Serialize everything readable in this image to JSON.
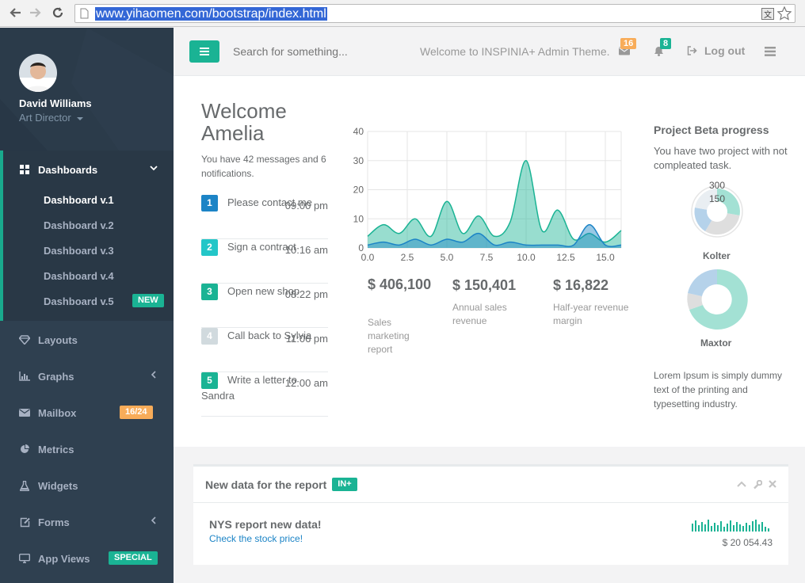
{
  "browser": {
    "url": "www.yihaomen.com/bootstrap/index.html"
  },
  "profile": {
    "name": "David Williams",
    "role": "Art Director"
  },
  "sidebar": {
    "items": [
      {
        "label": "Dashboards",
        "icon": "th-large-icon"
      },
      {
        "label": "Layouts",
        "icon": "diamond-icon"
      },
      {
        "label": "Graphs",
        "icon": "bar-chart-icon"
      },
      {
        "label": "Mailbox",
        "icon": "envelope-icon",
        "badge": "16/24"
      },
      {
        "label": "Metrics",
        "icon": "pie-chart-icon"
      },
      {
        "label": "Widgets",
        "icon": "flask-icon"
      },
      {
        "label": "Forms",
        "icon": "edit-icon"
      },
      {
        "label": "App Views",
        "icon": "desktop-icon",
        "badge": "SPECIAL"
      }
    ],
    "subitems": [
      "Dashboard v.1",
      "Dashboard v.2",
      "Dashboard v.3",
      "Dashboard v.4",
      "Dashboard v.5"
    ],
    "new_badge": "NEW"
  },
  "topbar": {
    "search_placeholder": "Search for something...",
    "welcome": "Welcome to INSPINIA+ Admin Theme.",
    "mail_count": "16",
    "alert_count": "8",
    "logout": "Log out"
  },
  "welcome": {
    "title": "Welcome Amelia",
    "subtitle": "You have 42 messages and 6 notifications."
  },
  "tasks": [
    {
      "num": "1",
      "text": "Please contact me",
      "time": "09:00 pm",
      "color": "#1c84c6"
    },
    {
      "num": "2",
      "text": "Sign a contract",
      "time": "10:16 am",
      "color": "#23c6c8"
    },
    {
      "num": "3",
      "text": "Open new shop",
      "time": "08:22 pm",
      "color": "#1ab394"
    },
    {
      "num": "4",
      "text": "Call back to Sylvia",
      "time": "11:06 pm",
      "color": "#d1dade"
    },
    {
      "num": "5",
      "text": "Write a letter to Sandra",
      "time": "12:00 am",
      "color": "#1ab394"
    }
  ],
  "stats": [
    {
      "value": "$ 406,100",
      "label": "Sales marketing report"
    },
    {
      "value": "$ 150,401",
      "label": "Annual sales revenue"
    },
    {
      "value": "$ 16,822",
      "label": "Half-year revenue margin"
    }
  ],
  "chart_data": {
    "type": "area",
    "xlim": [
      0,
      16
    ],
    "ylim": [
      0,
      40
    ],
    "xticks": [
      "0.0",
      "2.5",
      "5.0",
      "7.5",
      "10.0",
      "12.5",
      "15.0"
    ],
    "yticks": [
      "0",
      "10",
      "20",
      "30",
      "40"
    ],
    "grid": true,
    "series": [
      {
        "color": "#1ab394",
        "x": [
          0,
          1,
          2,
          3,
          4,
          5,
          6,
          7,
          8,
          9,
          10,
          11,
          12,
          13,
          14,
          15,
          16
        ],
        "y": [
          4,
          8,
          5,
          10,
          4,
          16,
          5,
          11,
          4,
          9,
          30,
          6,
          13,
          3,
          5,
          2,
          6
        ]
      },
      {
        "color": "#1c84c6",
        "x": [
          0,
          1,
          2,
          3,
          4,
          5,
          6,
          7,
          8,
          9,
          10,
          11,
          12,
          13,
          14,
          15,
          16
        ],
        "y": [
          1,
          2,
          1,
          3,
          1,
          3,
          2,
          5,
          1,
          2,
          1,
          1,
          1,
          1,
          8,
          1,
          1
        ]
      }
    ]
  },
  "project": {
    "title": "Project Beta progress",
    "subtitle": "You have two project with not compleated task.",
    "pie1_label": "Kolter",
    "pie2_label": "Maxtor",
    "pie1_values_text": [
      "300",
      "150"
    ],
    "lorem": "Lorem Ipsum is simply dummy text of the printing and typesetting industry."
  },
  "report": {
    "title": "New data for the report",
    "badge": "IN+",
    "heading": "NYS report new data!",
    "link": "Check the stock price!",
    "price": "$ 20 054.43"
  }
}
